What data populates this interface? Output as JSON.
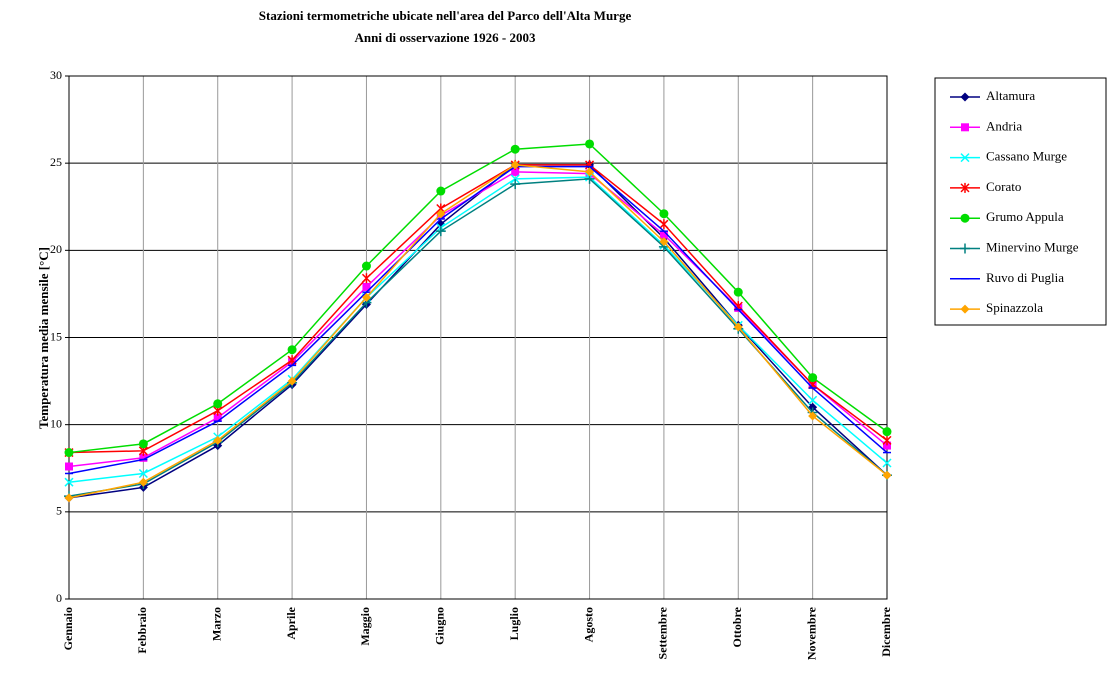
{
  "chart_data": {
    "type": "line",
    "title": "Stazioni termometriche ubicate nell'area del Parco dell'Alta Murge",
    "subtitle": "Anni di osservazione 1926 - 2003",
    "y_label": "Temperatura media mensile [°C]",
    "categories": [
      "Gennaio",
      "Febbraio",
      "Marzo",
      "Aprile",
      "Maggio",
      "Giugno",
      "Luglio",
      "Agosto",
      "Settembre",
      "Ottobre",
      "Novembre",
      "Dicembre"
    ],
    "ylim": [
      0,
      30
    ],
    "yticks": [
      0,
      5,
      10,
      15,
      20,
      25,
      30
    ],
    "grid": true,
    "legend": "right",
    "series": [
      {
        "name": "Altamura",
        "color": "#000080",
        "marker": "diamond",
        "values": [
          5.8,
          6.4,
          8.8,
          12.3,
          16.9,
          21.5,
          24.9,
          24.9,
          20.7,
          15.7,
          11.0,
          7.1
        ]
      },
      {
        "name": "Andria",
        "color": "#ff00ff",
        "marker": "square",
        "values": [
          7.6,
          8.1,
          10.4,
          13.6,
          17.9,
          22.0,
          24.5,
          24.4,
          20.9,
          16.7,
          12.3,
          8.8
        ]
      },
      {
        "name": "Cassano Murge",
        "color": "#00ffff",
        "marker": "x",
        "values": [
          6.7,
          7.2,
          9.3,
          12.6,
          17.3,
          21.3,
          24.1,
          24.2,
          20.3,
          15.7,
          11.4,
          7.8
        ]
      },
      {
        "name": "Corato",
        "color": "#ff0000",
        "marker": "asterisk",
        "values": [
          8.4,
          8.5,
          10.8,
          13.7,
          18.4,
          22.4,
          24.9,
          24.9,
          21.5,
          16.8,
          12.3,
          9.1
        ]
      },
      {
        "name": "Grumo Appula",
        "color": "#00dd00",
        "marker": "circle",
        "values": [
          8.4,
          8.9,
          11.2,
          14.3,
          19.1,
          23.4,
          25.8,
          26.1,
          22.1,
          17.6,
          12.7,
          9.6
        ]
      },
      {
        "name": "Minervino Murge",
        "color": "#008080",
        "marker": "plus",
        "values": [
          5.9,
          6.6,
          9.0,
          12.4,
          17.0,
          21.1,
          23.8,
          24.1,
          20.2,
          15.5,
          10.7,
          7.1
        ]
      },
      {
        "name": "Ruvo di Puglia",
        "color": "#0000ff",
        "marker": "dash",
        "values": [
          7.2,
          8.0,
          10.2,
          13.4,
          17.6,
          21.8,
          24.8,
          24.8,
          21.1,
          16.6,
          12.1,
          8.4
        ]
      },
      {
        "name": "Spinazzola",
        "color": "#ffa500",
        "marker": "diamond",
        "values": [
          5.8,
          6.7,
          9.1,
          12.5,
          17.3,
          22.1,
          24.9,
          24.5,
          20.5,
          15.6,
          10.5,
          7.1
        ]
      }
    ]
  }
}
